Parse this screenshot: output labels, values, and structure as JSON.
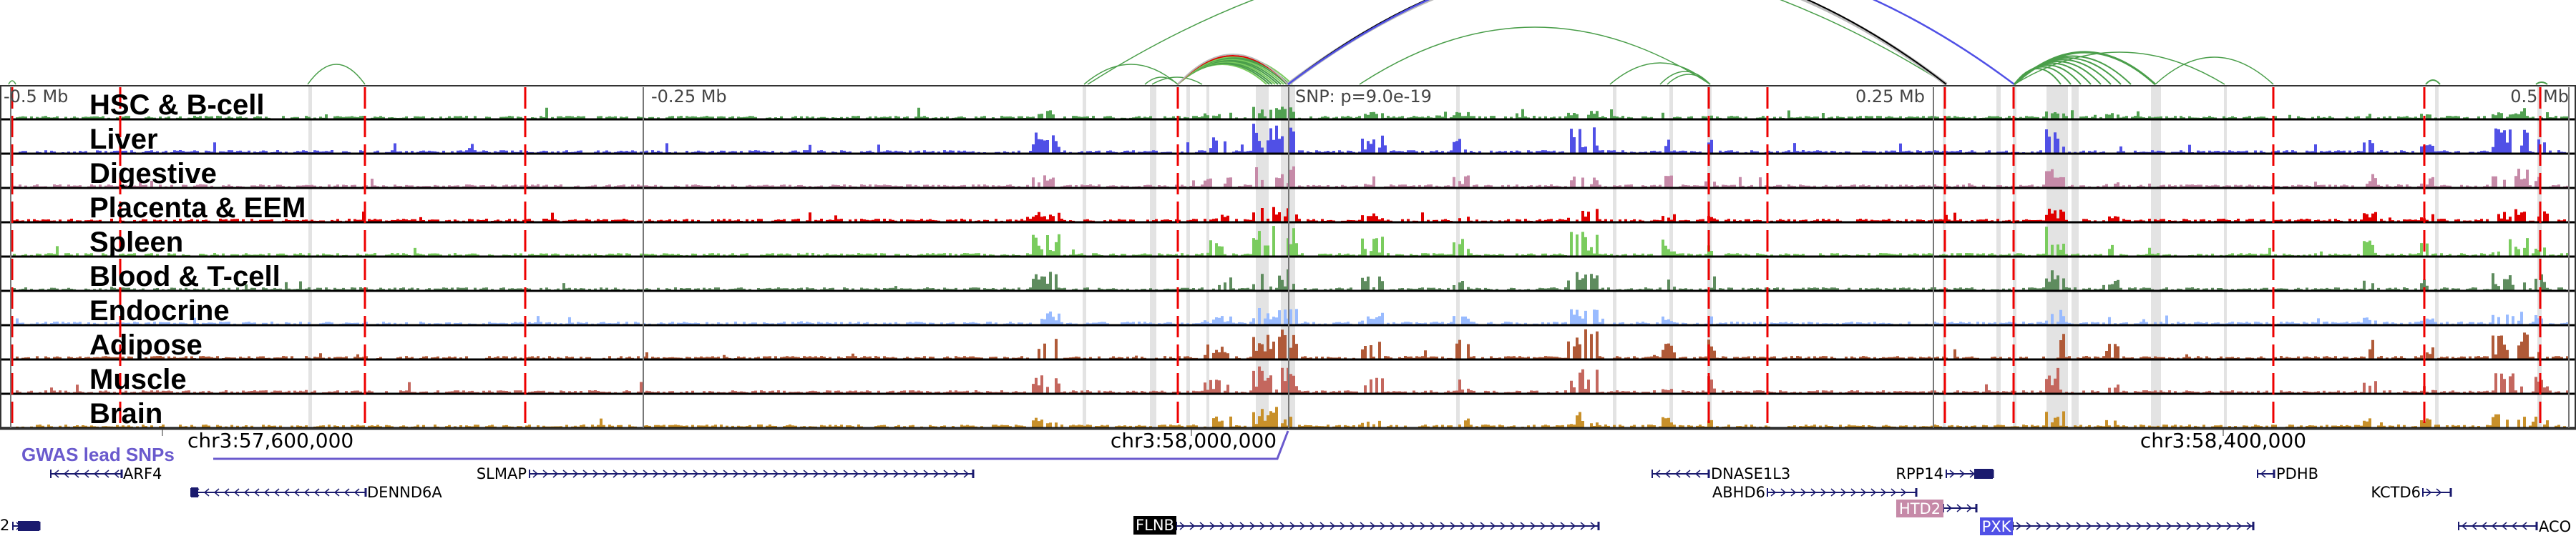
{
  "axis": {
    "ticks": [
      "-0.5 Mb",
      "-0.25 Mb",
      "0.25 Mb",
      "0.5 Mb"
    ],
    "snp_label": "SNP: p=9.0e-19"
  },
  "tracks": [
    {
      "label": "HSC & B-cell",
      "color": "#52a152"
    },
    {
      "label": "Liver",
      "color": "#5050e6"
    },
    {
      "label": "Digestive",
      "color": "#c68aa8"
    },
    {
      "label": "Placenta & EEM",
      "color": "#e00000"
    },
    {
      "label": "Spleen",
      "color": "#7acc5e"
    },
    {
      "label": "Blood & T-cell",
      "color": "#5e8c5e"
    },
    {
      "label": "Endocrine",
      "color": "#99bbff"
    },
    {
      "label": "Adipose",
      "color": "#b05a38"
    },
    {
      "label": "Muscle",
      "color": "#c4675e"
    },
    {
      "label": "Brain",
      "color": "#c8902a"
    }
  ],
  "coordinates": [
    "chr3:57,600,000",
    "chr3:58,000,000",
    "chr3:58,400,000"
  ],
  "gwas_label": "GWAS lead SNPs",
  "genes": {
    "ARF4": "ARF4",
    "DENND6A": "DENND6A",
    "SLMAP": "SLMAP",
    "DNASE1L3": "DNASE1L3",
    "ABHD6": "ABHD6",
    "RPP14": "RPP14",
    "HTD2": "HTD2",
    "PDHB": "PDHB",
    "KCTD6": "KCTD6",
    "FLNB": "FLNB",
    "PXK": "PXK",
    "ACO": "ACO",
    "partial_left": "2"
  },
  "colors": {
    "gene": "#1a1a6e",
    "gwas": "#6a5acd",
    "red_marker": "#ee0000",
    "highlight": "#e3e3e3",
    "htd2_box": "#c68aa8",
    "pxk_box": "#5050e6",
    "flnb_box": "#000000"
  }
}
